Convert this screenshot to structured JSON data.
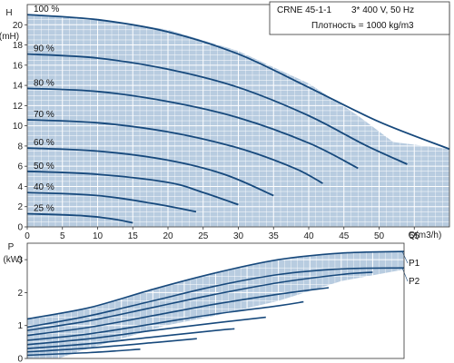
{
  "info_box": {
    "model": "CRNE 45-1-1",
    "supply": "3* 400 V, 50 Hz",
    "density": "Плотность = 1000 kg/m3"
  },
  "chart_data": [
    {
      "type": "line",
      "name": "head",
      "ylabel_top": "H",
      "ylabel_unit": "(mH)",
      "xlabel": "Q(m3/h)",
      "xlim": [
        0,
        60
      ],
      "ylim": [
        0,
        22
      ],
      "x_ticks": [
        0,
        5,
        10,
        15,
        20,
        25,
        30,
        35,
        40,
        45,
        50,
        55
      ],
      "y_ticks": [
        0,
        2,
        4,
        6,
        8,
        10,
        12,
        14,
        16,
        18,
        20
      ],
      "grid": true,
      "envelope": [
        [
          0,
          21
        ],
        [
          10,
          20.6
        ],
        [
          20,
          19.5
        ],
        [
          30,
          17.4
        ],
        [
          40,
          14.2
        ],
        [
          47,
          11.0
        ],
        [
          52,
          8.4
        ],
        [
          60,
          7.7
        ],
        [
          60,
          0
        ],
        [
          0,
          0
        ]
      ],
      "series": [
        {
          "label": "100 %",
          "points": [
            [
              0,
              21.0
            ],
            [
              10,
              20.5
            ],
            [
              20,
              19.3
            ],
            [
              30,
              17.1
            ],
            [
              40,
              13.8
            ],
            [
              50,
              10.4
            ],
            [
              60,
              7.7
            ]
          ]
        },
        {
          "label": "90 %",
          "points": [
            [
              0,
              17.1
            ],
            [
              10,
              16.7
            ],
            [
              20,
              15.6
            ],
            [
              30,
              13.8
            ],
            [
              40,
              11.0
            ],
            [
              48,
              8.1
            ],
            [
              54,
              6.2
            ]
          ]
        },
        {
          "label": "80 %",
          "points": [
            [
              0,
              13.7
            ],
            [
              10,
              13.4
            ],
            [
              20,
              12.4
            ],
            [
              30,
              10.8
            ],
            [
              40,
              8.3
            ],
            [
              47,
              5.8
            ]
          ]
        },
        {
          "label": "70 %",
          "points": [
            [
              0,
              10.6
            ],
            [
              10,
              10.3
            ],
            [
              20,
              9.4
            ],
            [
              30,
              7.8
            ],
            [
              38,
              5.8
            ],
            [
              42,
              4.3
            ]
          ]
        },
        {
          "label": "60 %",
          "points": [
            [
              0,
              7.8
            ],
            [
              10,
              7.5
            ],
            [
              20,
              6.6
            ],
            [
              28,
              5.2
            ],
            [
              35,
              3.1
            ]
          ]
        },
        {
          "label": "50 %",
          "points": [
            [
              0,
              5.5
            ],
            [
              10,
              5.2
            ],
            [
              20,
              4.4
            ],
            [
              25,
              3.4
            ],
            [
              30,
              2.2
            ]
          ]
        },
        {
          "label": "40 %",
          "points": [
            [
              0,
              3.4
            ],
            [
              10,
              3.1
            ],
            [
              18,
              2.3
            ],
            [
              24,
              1.5
            ]
          ]
        },
        {
          "label": "25 %",
          "points": [
            [
              0,
              1.3
            ],
            [
              8,
              1.1
            ],
            [
              12,
              0.8
            ],
            [
              15,
              0.4
            ]
          ]
        }
      ]
    },
    {
      "type": "line",
      "name": "power",
      "ylabel_top": "P",
      "ylabel_unit": "(kW)",
      "xlim": [
        0,
        60
      ],
      "ylim": [
        0,
        3.5
      ],
      "y_ticks": [
        0,
        1,
        2,
        3
      ],
      "grid": true,
      "envelope": [
        [
          0,
          0
        ],
        [
          0,
          1.2
        ],
        [
          10,
          1.55
        ],
        [
          20,
          2.1
        ],
        [
          30,
          2.6
        ],
        [
          40,
          3.0
        ],
        [
          50,
          3.2
        ],
        [
          60,
          3.25
        ],
        [
          60,
          2.7
        ],
        [
          50,
          2.35
        ],
        [
          40,
          1.75
        ],
        [
          30,
          1.3
        ],
        [
          22,
          1.0
        ],
        [
          15,
          0.6
        ],
        [
          8,
          0.2
        ],
        [
          5,
          0
        ]
      ],
      "series": [
        {
          "label": "P1",
          "points": [
            [
              0,
              1.2
            ],
            [
              10,
              1.55
            ],
            [
              20,
              2.1
            ],
            [
              30,
              2.6
            ],
            [
              40,
              3.0
            ],
            [
              50,
              3.2
            ],
            [
              60,
              3.25
            ]
          ]
        },
        {
          "label": "P2",
          "points": [
            [
              0,
              0.95
            ],
            [
              10,
              1.3
            ],
            [
              20,
              1.75
            ],
            [
              30,
              2.2
            ],
            [
              40,
              2.55
            ],
            [
              50,
              2.72
            ],
            [
              60,
              2.75
            ]
          ]
        },
        {
          "label": "",
          "points": [
            [
              0,
              0.85
            ],
            [
              10,
              1.15
            ],
            [
              20,
              1.55
            ],
            [
              30,
              1.95
            ],
            [
              40,
              2.3
            ],
            [
              50,
              2.55
            ],
            [
              55,
              2.62
            ]
          ]
        },
        {
          "label": "",
          "points": [
            [
              0,
              0.7
            ],
            [
              10,
              0.95
            ],
            [
              20,
              1.3
            ],
            [
              30,
              1.65
            ],
            [
              40,
              1.95
            ],
            [
              48,
              2.15
            ]
          ]
        },
        {
          "label": "",
          "points": [
            [
              0,
              0.55
            ],
            [
              10,
              0.75
            ],
            [
              20,
              1.05
            ],
            [
              30,
              1.35
            ],
            [
              40,
              1.6
            ],
            [
              44,
              1.72
            ]
          ]
        },
        {
          "label": "",
          "points": [
            [
              0,
              0.42
            ],
            [
              10,
              0.6
            ],
            [
              20,
              0.85
            ],
            [
              30,
              1.08
            ],
            [
              38,
              1.25
            ]
          ]
        },
        {
          "label": "",
          "points": [
            [
              0,
              0.3
            ],
            [
              10,
              0.45
            ],
            [
              20,
              0.65
            ],
            [
              30,
              0.85
            ],
            [
              33,
              0.9
            ]
          ]
        },
        {
          "label": "",
          "points": [
            [
              0,
              0.2
            ],
            [
              10,
              0.32
            ],
            [
              20,
              0.48
            ],
            [
              27,
              0.6
            ]
          ]
        },
        {
          "label": "",
          "points": [
            [
              0,
              0.1
            ],
            [
              10,
              0.18
            ],
            [
              18,
              0.28
            ]
          ]
        }
      ]
    }
  ],
  "colors": {
    "fill": "#b8cce0",
    "curve": "#17497c",
    "grid": "#ffffff",
    "axis": "#333333",
    "ref_line": "#9a9a9a"
  }
}
